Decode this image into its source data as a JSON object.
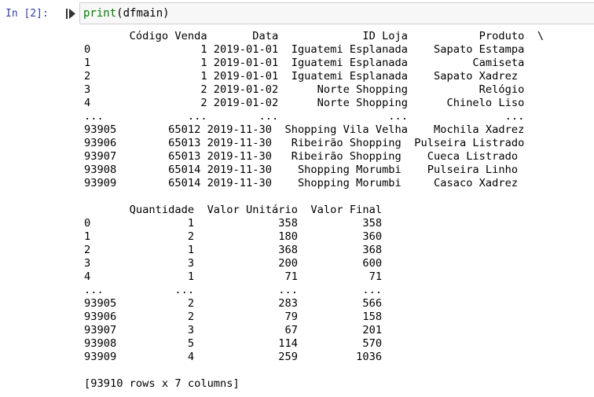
{
  "cell": {
    "prompt": "In [2]:",
    "code_fn": "print",
    "code_args": "(dfmain)"
  },
  "icons": {
    "run": "run-cell-icon"
  },
  "output": {
    "lines": [
      "       Código Venda       Data             ID Loja           Produto  \\",
      "0                 1 2019-01-01  Iguatemi Esplanada    Sapato Estampa",
      "1                 1 2019-01-01  Iguatemi Esplanada          Camiseta",
      "2                 1 2019-01-01  Iguatemi Esplanada    Sapato Xadrez",
      "3                 2 2019-01-02      Norte Shopping           Relógio",
      "4                 2 2019-01-02      Norte Shopping      Chinelo Liso",
      "...             ...        ...                 ...               ...",
      "93905        65012 2019-11-30  Shopping Vila Velha    Mochila Xadrez",
      "93906        65013 2019-11-30   Ribeirão Shopping  Pulseira Listrado",
      "93907        65013 2019-11-30   Ribeirão Shopping    Cueca Listrado",
      "93908        65014 2019-11-30    Shopping Morumbi    Pulseira Linho",
      "93909        65014 2019-11-30    Shopping Morumbi     Casaco Xadrez",
      "",
      "       Quantidade  Valor Unitário  Valor Final",
      "0               1             358          358",
      "1               2             180          360",
      "2               1             368          368",
      "3               3             200          600",
      "4               1              71           71",
      "...           ...             ...          ...",
      "93905           2             283          566",
      "93906           2              79          158",
      "93907           3              67          201",
      "93908           5             114          570",
      "93909           4             259         1036",
      "",
      "[93910 rows x 7 columns]"
    ]
  },
  "colors": {
    "prompt": "#303f9f",
    "code_function": "#008000",
    "cell_background": "#f7f7f7",
    "cell_border": "#cfcfcf"
  }
}
